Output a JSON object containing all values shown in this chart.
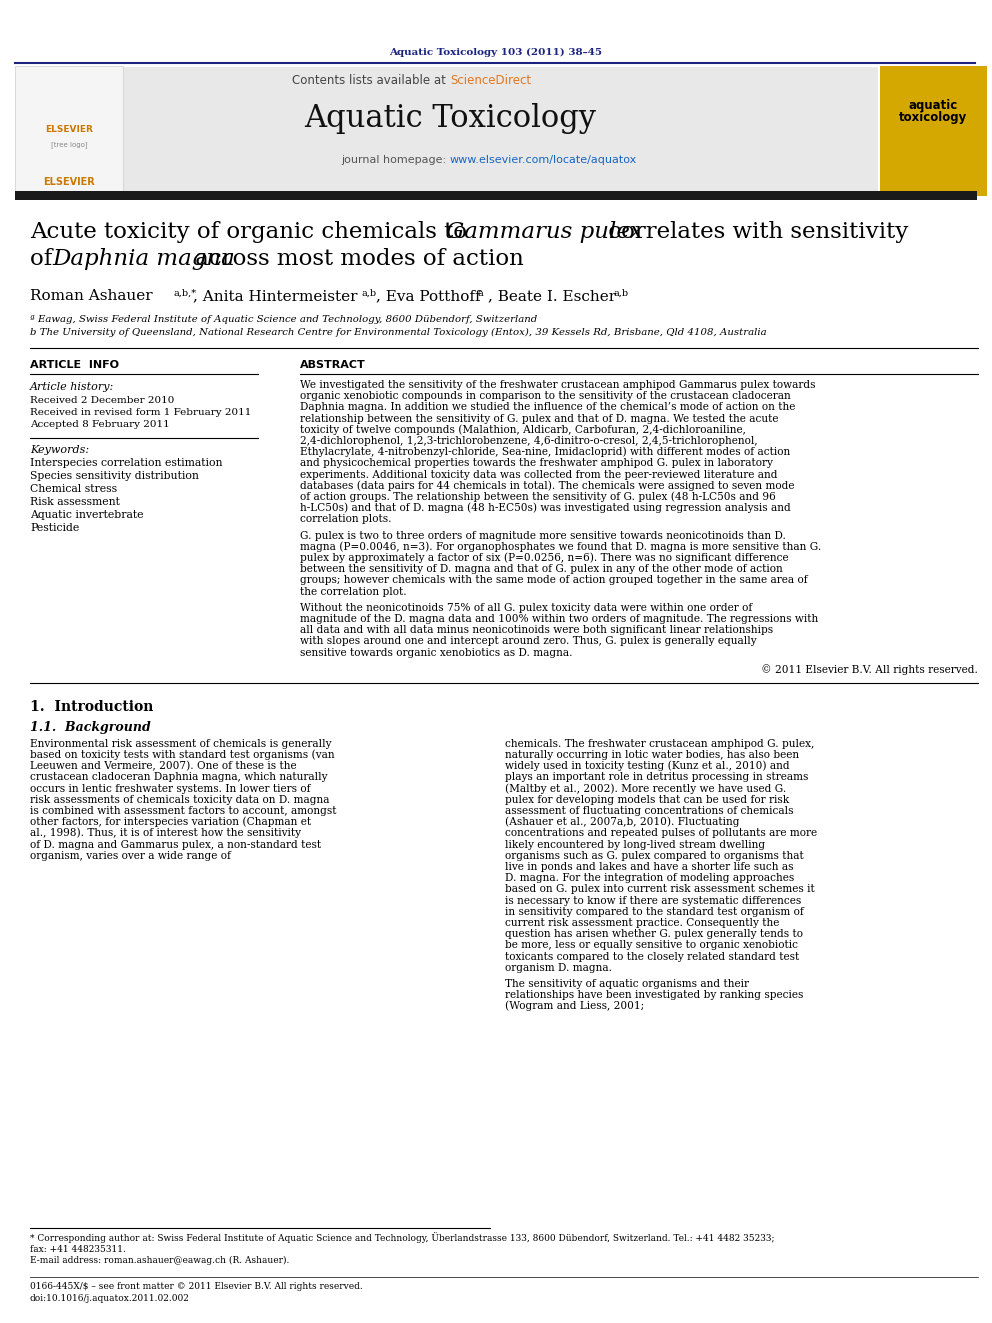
{
  "journal_line": "Aquatic Toxicology 103 (2011) 38–45",
  "contents_line": "Contents lists available at ScienceDirect",
  "journal_name": "Aquatic Toxicology",
  "journal_homepage_label": "journal homepage: ",
  "journal_homepage_url": "www.elsevier.com/locate/aquatox",
  "title_line1_normal": "Acute toxicity of organic chemicals to ",
  "title_line1_italic": "Gammarus pulex",
  "title_line1_normal2": " correlates with sensitivity",
  "title_line2_normal": "of ",
  "title_line2_italic": "Daphnia magna",
  "title_line2_normal2": " across most modes of action",
  "author1": "Roman Ashauer",
  "author1_sup": "a,b,*",
  "author2": ", Anita Hintermeister",
  "author2_sup": "a,b",
  "author3": ", Eva Potthoff",
  "author3_sup": "a",
  "author4": ", Beate I. Escher",
  "author4_sup": "a,b",
  "affil_a": "ª Eawag, Swiss Federal Institute of Aquatic Science and Technology, 8600 Dübendorf, Switzerland",
  "affil_b": "b The University of Queensland, National Research Centre for Environmental Toxicology (Entox), 39 Kessels Rd, Brisbane, Qld 4108, Australia",
  "article_info_title": "ARTICLE  INFO",
  "article_history_title": "Article history:",
  "received": "Received 2 December 2010",
  "received_revised": "Received in revised form 1 February 2011",
  "accepted": "Accepted 8 February 2011",
  "keywords_title": "Keywords:",
  "keywords": [
    "Interspecies correlation estimation",
    "Species sensitivity distribution",
    "Chemical stress",
    "Risk assessment",
    "Aquatic invertebrate",
    "Pesticide"
  ],
  "abstract_title": "ABSTRACT",
  "abstract_p1": "We investigated the sensitivity of the freshwater crustacean amphipod Gammarus pulex towards organic xenobiotic compounds in comparison to the sensitivity of the crustacean cladoceran Daphnia magna. In addition we studied the influence of the chemical’s mode of action on the relationship between the sensitivity of G. pulex and that of D. magna. We tested the acute toxicity of twelve compounds (Malathion, Aldicarb, Carbofuran, 2,4-dichloroaniline, 2,4-dichlorophenol, 1,2,3-trichlorobenzene, 4,6-dinitro-o-cresol, 2,4,5-trichlorophenol, Ethylacrylate, 4-nitrobenzyl-chloride, Sea-nine, Imidacloprid) with different modes of action and physicochemical properties towards the freshwater amphipod G. pulex in laboratory experiments. Additional toxicity data was collected from the peer-reviewed literature and databases (data pairs for 44 chemicals in total). The chemicals were assigned to seven mode of action groups. The relationship between the sensitivity of G. pulex (48 h-LC50s and 96 h-LC50s) and that of D. magna (48 h-EC50s) was investigated using regression analysis and correlation plots.",
  "abstract_p2": "    G. pulex is two to three orders of magnitude more sensitive towards neonicotinoids than D. magna (P=0.0046, n=3). For organophosphates we found that D. magna is more sensitive than G. pulex by approximately a factor of six (P=0.0256, n=6). There was no significant difference between the sensitivity of D. magna and that of G. pulex in any of the other mode of action groups; however chemicals with the same mode of action grouped together in the same area of the correlation plot.",
  "abstract_p3": "    Without the neonicotinoids 75% of all G. pulex toxicity data were within one order of magnitude of the D. magna data and 100% within two orders of magnitude. The regressions with all data and with all data minus neonicotinoids were both significant linear relationships with slopes around one and intercept around zero. Thus, G. pulex is generally equally sensitive towards organic xenobiotics as D. magna.",
  "copyright": "© 2011 Elsevier B.V. All rights reserved.",
  "intro_title": "1.  Introduction",
  "intro_subtitle": "1.1.  Background",
  "intro_p1_left": "Environmental risk assessment of chemicals is generally based on toxicity tests with standard test organisms (van Leeuwen and Vermeire, 2007). One of these is the crustacean cladoceran Daphnia magna, which naturally occurs in lentic freshwater systems. In lower tiers of risk assessments of chemicals toxicity data on D. magna is combined with assessment factors to account, amongst other factors, for interspecies variation (Chapman et al., 1998). Thus, it is of interest how the sensitivity of D. magna and Gammarus pulex, a non-standard test organism, varies over a wide range of",
  "intro_p1_right": "chemicals. The freshwater crustacean amphipod G. pulex, naturally occurring in lotic water bodies, has also been widely used in toxicity testing (Kunz et al., 2010) and plays an important role in detritus processing in streams (Maltby et al., 2002). More recently we have used G. pulex for developing models that can be used for risk assessment of fluctuating concentrations of chemicals (Ashauer et al., 2007a,b, 2010). Fluctuating concentrations and repeated pulses of pollutants are more likely encountered by long-lived stream dwelling organisms such as G. pulex compared to organisms that live in ponds and lakes and have a shorter life such as D. magna. For the integration of modeling approaches based on G. pulex into current risk assessment schemes it is necessary to know if there are systematic differences in sensitivity compared to the standard test organism of current risk assessment practice. Consequently the question has arisen whether G. pulex generally tends to be more, less or equally sensitive to organic xenobiotic toxicants compared to the closely related standard test organism D. magna.",
  "sensitivity_right": "    The sensitivity of aquatic organisms and their relationships have been investigated by ranking species (Wogram and Liess, 2001;",
  "footnote_star": "* Corresponding author at: Swiss Federal Institute of Aquatic Science and Technology, Überlandstrasse 133, 8600 Dübendorf, Switzerland. Tel.: +41 4482 35233;",
  "footnote_star2": "fax: +41 448235311.",
  "footnote_email": "E-mail address: roman.ashauer@eawag.ch (R. Ashauer).",
  "footer_issn": "0166-445X/$ – see front matter © 2011 Elsevier B.V. All rights reserved.",
  "footer_doi": "doi:10.1016/j.aquatox.2011.02.002",
  "header_color": "#1a237e",
  "sciencedirect_color": "#e07820",
  "link_color": "#1565c0",
  "header_bg": "#e8e8e8",
  "black_bar_color": "#1a1a1a",
  "page_bg": "#ffffff",
  "cover_yellow": "#d4a800"
}
